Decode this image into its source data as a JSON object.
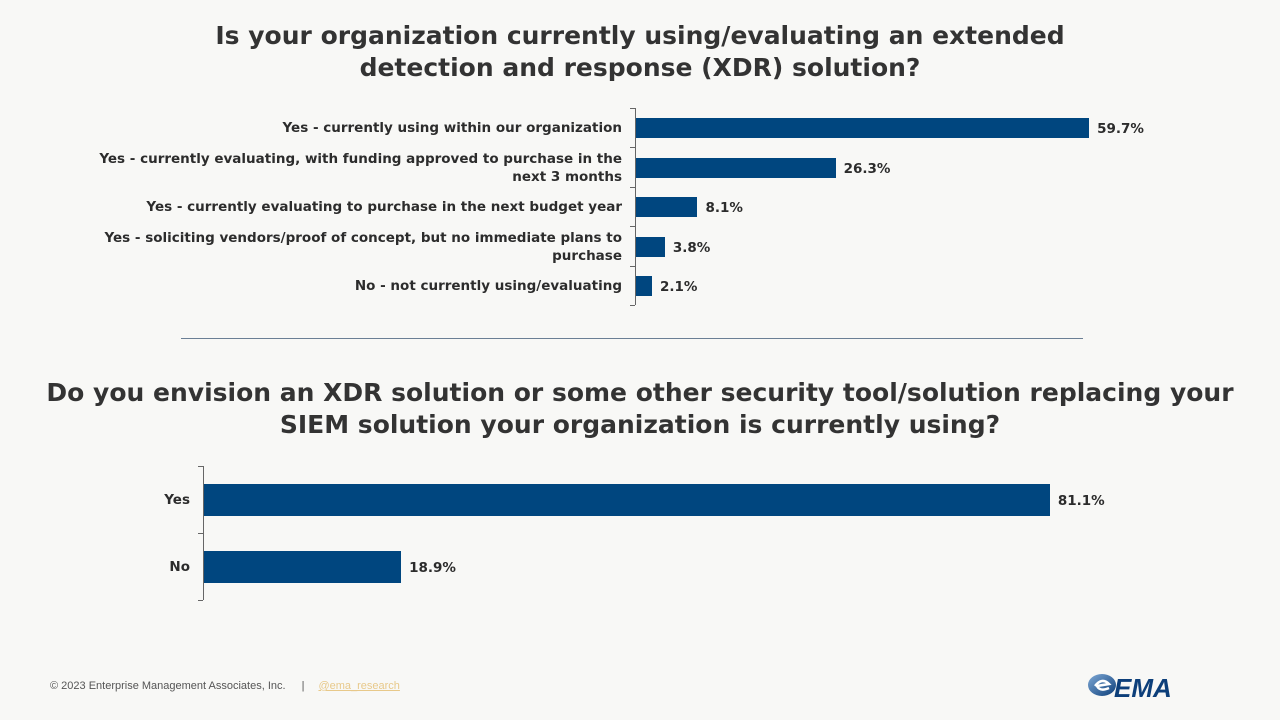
{
  "chart_data": [
    {
      "type": "bar",
      "orientation": "horizontal",
      "title": "Is your organization currently using/evaluating an extended detection and response (XDR) solution?",
      "title_lines": [
        "Is your organization currently using/evaluating an extended",
        "detection and response (XDR) solution?"
      ],
      "categories": [
        "Yes - currently using within our organization",
        "Yes - currently evaluating, with funding approved to purchase in the next 3 months",
        "Yes - currently evaluating to purchase in the next budget year",
        "Yes - soliciting vendors/proof of concept, but no immediate plans to purchase",
        "No - not currently using/evaluating"
      ],
      "values": [
        59.7,
        26.3,
        8.1,
        3.8,
        2.1
      ],
      "data_labels": [
        "59.7%",
        "26.3%",
        "8.1%",
        "3.8%",
        "2.1%"
      ],
      "unit": "%",
      "grid": false,
      "color": "#00467f"
    },
    {
      "type": "bar",
      "orientation": "horizontal",
      "title": "Do you envision an XDR solution or some other security tool/solution replacing your SIEM solution your organization is currently using?",
      "title_lines": [
        "Do you envision an XDR solution or some other security tool/solution replacing your",
        "SIEM solution your organization is currently using?"
      ],
      "categories": [
        "Yes",
        "No"
      ],
      "values": [
        81.1,
        18.9
      ],
      "data_labels": [
        "81.1%",
        "18.9%"
      ],
      "unit": "%",
      "grid": false,
      "color": "#00467f"
    }
  ],
  "footer": {
    "copyright": "© 2023 Enterprise Management Associates, Inc.",
    "separator": "|",
    "handle": "@ema_research"
  },
  "logo": {
    "text": "EMA"
  }
}
